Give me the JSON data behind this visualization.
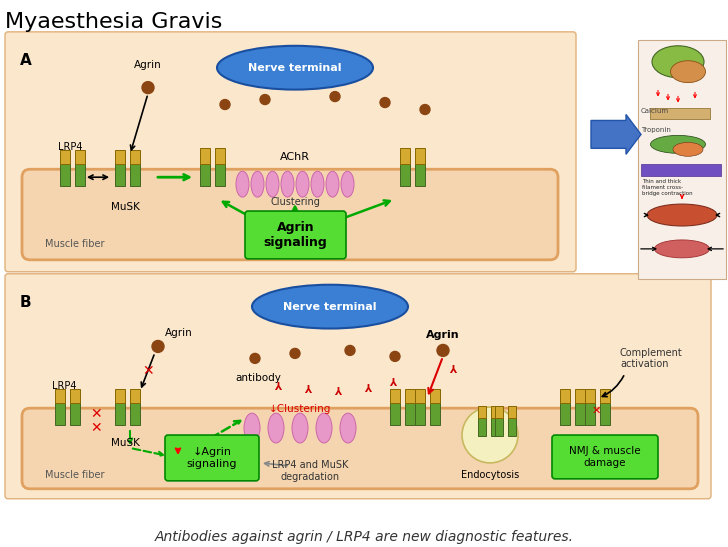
{
  "title": "Myaesthesia Gravis",
  "title_fontsize": 16,
  "background_color": "#ffffff",
  "bottom_text": "Antibodies against agrin / LRP4 are new diagnostic features.",
  "nerve_terminal_color": "#3a7fd4",
  "nerve_terminal_text": "Nerve terminal",
  "muscle_fiber_color": "#f5d5b0",
  "muscle_fiber_border": "#e0a060",
  "panel_bg_color": "#fbe8cc",
  "panel_border_color": "#e0b07a",
  "agrin_signaling_color": "#55dd33",
  "agrin_dot_color": "#8B4513",
  "achr_color": "#e898c8",
  "receptor_gold": "#d4aa30",
  "receptor_green": "#60a030",
  "arrow_green": "#00aa00",
  "arrow_red": "#dd0000",
  "nmj_box_color": "#55dd33",
  "endocytosis_color": "#f5f0c0",
  "x_color": "#dd0000",
  "blue_arrow_color": "#4472c4"
}
